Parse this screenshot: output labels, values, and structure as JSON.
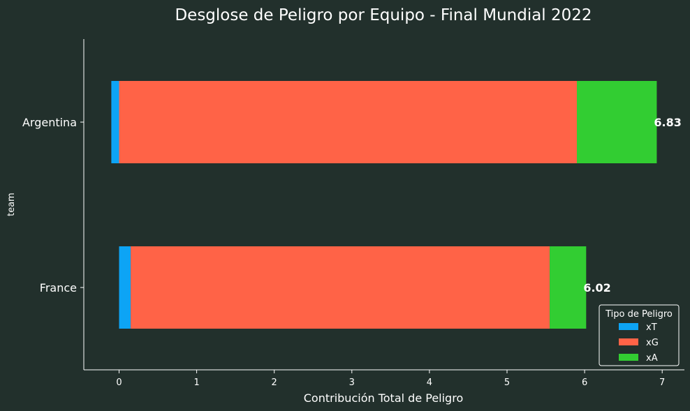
{
  "chart_data": {
    "type": "bar",
    "orientation": "horizontal",
    "stacked": true,
    "title": "Desglose de Peligro por Equipo - Final Mundial 2022",
    "xlabel": "Contribución Total de Peligro",
    "ylabel": "team",
    "xlim": [
      -0.45,
      7.3
    ],
    "xticks": [
      "0",
      "1",
      "2",
      "3",
      "4",
      "5",
      "6",
      "7"
    ],
    "categories": [
      "Argentina",
      "France"
    ],
    "series": [
      {
        "name": "xT",
        "color": "#0da4f5",
        "values": [
          -0.1,
          0.15
        ]
      },
      {
        "name": "xG",
        "color": "#ff6347",
        "values": [
          5.9,
          5.4
        ]
      },
      {
        "name": "xA",
        "color": "#32cd32",
        "values": [
          1.03,
          0.47
        ]
      }
    ],
    "totals": [
      "6.83",
      "6.02"
    ],
    "legend": {
      "title": "Tipo de Peligro",
      "position": "lower right"
    },
    "grid": false
  }
}
